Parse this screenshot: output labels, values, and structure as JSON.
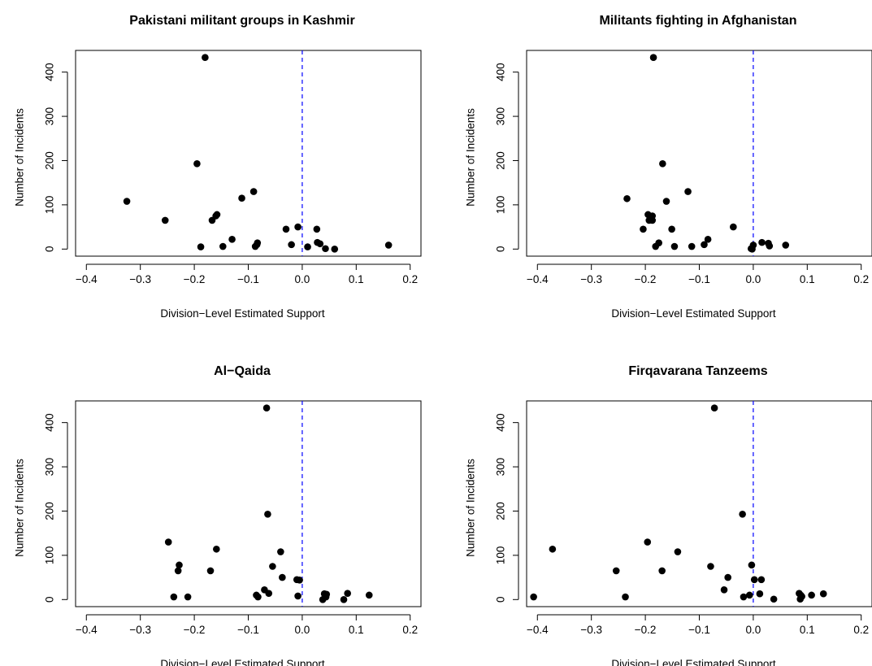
{
  "chart_data": [
    {
      "type": "scatter",
      "title": "Pakistani militant groups in Kashmir",
      "xlabel": "Division−Level Estimated Support",
      "ylabel": "Number of Incidents",
      "xlim": [
        -0.42,
        0.22
      ],
      "ylim": [
        -16,
        449
      ],
      "xticks": [
        "−0.4",
        "−0.3",
        "−0.2",
        "−0.1",
        "0.0",
        "0.1",
        "0.2"
      ],
      "yticks": [
        "0",
        "100",
        "200",
        "300",
        "400"
      ],
      "reference_line_x": 0,
      "reference_line_color": "#0000ff",
      "points": [
        {
          "x": -0.325,
          "y": 108
        },
        {
          "x": -0.254,
          "y": 65
        },
        {
          "x": -0.195,
          "y": 193
        },
        {
          "x": -0.18,
          "y": 433
        },
        {
          "x": -0.188,
          "y": 5
        },
        {
          "x": -0.167,
          "y": 65
        },
        {
          "x": -0.16,
          "y": 75
        },
        {
          "x": -0.158,
          "y": 78
        },
        {
          "x": -0.147,
          "y": 6
        },
        {
          "x": -0.13,
          "y": 22
        },
        {
          "x": -0.112,
          "y": 115
        },
        {
          "x": -0.09,
          "y": 130
        },
        {
          "x": -0.087,
          "y": 6
        },
        {
          "x": -0.084,
          "y": 10
        },
        {
          "x": -0.083,
          "y": 14
        },
        {
          "x": -0.03,
          "y": 45
        },
        {
          "x": -0.02,
          "y": 10
        },
        {
          "x": -0.008,
          "y": 50
        },
        {
          "x": 0.01,
          "y": 5
        },
        {
          "x": 0.027,
          "y": 45
        },
        {
          "x": 0.028,
          "y": 15
        },
        {
          "x": 0.033,
          "y": 12
        },
        {
          "x": 0.043,
          "y": 1
        },
        {
          "x": 0.06,
          "y": 0
        },
        {
          "x": 0.16,
          "y": 9
        }
      ]
    },
    {
      "type": "scatter",
      "title": "Militants fighting in Afghanistan",
      "xlabel": "Division−Level Estimated Support",
      "ylabel": "Number of Incidents",
      "xlim": [
        -0.42,
        0.22
      ],
      "ylim": [
        -16,
        449
      ],
      "xticks": [
        "−0.4",
        "−0.3",
        "−0.2",
        "−0.1",
        "0.0",
        "0.1",
        "0.2"
      ],
      "yticks": [
        "0",
        "100",
        "200",
        "300",
        "400"
      ],
      "reference_line_x": 0,
      "reference_line_color": "#0000ff",
      "points": [
        {
          "x": -0.234,
          "y": 114
        },
        {
          "x": -0.204,
          "y": 45
        },
        {
          "x": -0.195,
          "y": 78
        },
        {
          "x": -0.193,
          "y": 65
        },
        {
          "x": -0.187,
          "y": 65
        },
        {
          "x": -0.187,
          "y": 75
        },
        {
          "x": -0.185,
          "y": 433
        },
        {
          "x": -0.181,
          "y": 6
        },
        {
          "x": -0.175,
          "y": 14
        },
        {
          "x": -0.168,
          "y": 193
        },
        {
          "x": -0.161,
          "y": 108
        },
        {
          "x": -0.151,
          "y": 45
        },
        {
          "x": -0.146,
          "y": 6
        },
        {
          "x": -0.121,
          "y": 130
        },
        {
          "x": -0.114,
          "y": 6
        },
        {
          "x": -0.091,
          "y": 10
        },
        {
          "x": -0.084,
          "y": 22
        },
        {
          "x": -0.037,
          "y": 50
        },
        {
          "x": -0.004,
          "y": 1
        },
        {
          "x": -0.002,
          "y": 0
        },
        {
          "x": 0.0,
          "y": 9
        },
        {
          "x": 0.016,
          "y": 15
        },
        {
          "x": 0.028,
          "y": 13
        },
        {
          "x": 0.03,
          "y": 7
        },
        {
          "x": 0.06,
          "y": 9
        }
      ]
    },
    {
      "type": "scatter",
      "title": "Al−Qaida",
      "xlabel": "Division−Level Estimated Support",
      "ylabel": "Number of Incidents",
      "xlim": [
        -0.42,
        0.22
      ],
      "ylim": [
        -16,
        449
      ],
      "xticks": [
        "−0.4",
        "−0.3",
        "−0.2",
        "−0.1",
        "0.0",
        "0.1",
        "0.2"
      ],
      "yticks": [
        "0",
        "100",
        "200",
        "300",
        "400"
      ],
      "reference_line_x": 0,
      "reference_line_color": "#0000ff",
      "points": [
        {
          "x": -0.248,
          "y": 130
        },
        {
          "x": -0.238,
          "y": 6
        },
        {
          "x": -0.23,
          "y": 65
        },
        {
          "x": -0.228,
          "y": 78
        },
        {
          "x": -0.212,
          "y": 6
        },
        {
          "x": -0.17,
          "y": 65
        },
        {
          "x": -0.159,
          "y": 114
        },
        {
          "x": -0.085,
          "y": 10
        },
        {
          "x": -0.082,
          "y": 6
        },
        {
          "x": -0.07,
          "y": 22
        },
        {
          "x": -0.066,
          "y": 433
        },
        {
          "x": -0.064,
          "y": 193
        },
        {
          "x": -0.062,
          "y": 14
        },
        {
          "x": -0.055,
          "y": 75
        },
        {
          "x": -0.04,
          "y": 108
        },
        {
          "x": -0.037,
          "y": 50
        },
        {
          "x": -0.01,
          "y": 45
        },
        {
          "x": -0.005,
          "y": 44
        },
        {
          "x": -0.008,
          "y": 8
        },
        {
          "x": 0.038,
          "y": 0
        },
        {
          "x": 0.041,
          "y": 13
        },
        {
          "x": 0.044,
          "y": 6
        },
        {
          "x": 0.045,
          "y": 12
        },
        {
          "x": 0.077,
          "y": 0
        },
        {
          "x": 0.084,
          "y": 14
        },
        {
          "x": 0.124,
          "y": 10
        }
      ]
    },
    {
      "type": "scatter",
      "title": "Firqavarana Tanzeems",
      "xlabel": "Division−Level Estimated Support",
      "ylabel": "Number of Incidents",
      "xlim": [
        -0.42,
        0.22
      ],
      "ylim": [
        -16,
        449
      ],
      "xticks": [
        "−0.4",
        "−0.3",
        "−0.2",
        "−0.1",
        "0.0",
        "0.1",
        "0.2"
      ],
      "yticks": [
        "0",
        "100",
        "200",
        "300",
        "400"
      ],
      "reference_line_x": 0,
      "reference_line_color": "#0000ff",
      "points": [
        {
          "x": -0.407,
          "y": 6
        },
        {
          "x": -0.372,
          "y": 114
        },
        {
          "x": -0.254,
          "y": 65
        },
        {
          "x": -0.237,
          "y": 6
        },
        {
          "x": -0.196,
          "y": 130
        },
        {
          "x": -0.169,
          "y": 65
        },
        {
          "x": -0.14,
          "y": 108
        },
        {
          "x": -0.079,
          "y": 75
        },
        {
          "x": -0.072,
          "y": 433
        },
        {
          "x": -0.054,
          "y": 22
        },
        {
          "x": -0.047,
          "y": 50
        },
        {
          "x": -0.02,
          "y": 193
        },
        {
          "x": -0.018,
          "y": 6
        },
        {
          "x": -0.007,
          "y": 10
        },
        {
          "x": -0.003,
          "y": 78
        },
        {
          "x": 0.002,
          "y": 45
        },
        {
          "x": 0.012,
          "y": 13
        },
        {
          "x": 0.015,
          "y": 45
        },
        {
          "x": 0.038,
          "y": 1
        },
        {
          "x": 0.085,
          "y": 14
        },
        {
          "x": 0.087,
          "y": 1
        },
        {
          "x": 0.088,
          "y": 10
        },
        {
          "x": 0.09,
          "y": 7
        },
        {
          "x": 0.108,
          "y": 10
        },
        {
          "x": 0.13,
          "y": 13
        }
      ]
    }
  ]
}
